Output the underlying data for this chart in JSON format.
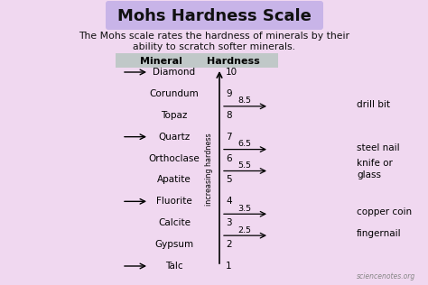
{
  "bg_color": "#f0d8f0",
  "title": "Mohs Hardness Scale",
  "title_bg": "#c8b4e8",
  "subtitle_line1": "The Mohs scale rates the hardness of minerals by their",
  "subtitle_line2": "ability to scratch softer minerals.",
  "col_mineral": "Mineral",
  "col_hardness": "Hardness",
  "minerals": [
    "Diamond",
    "Corundum",
    "Topaz",
    "Quartz",
    "Orthoclase",
    "Apatite",
    "Fluorite",
    "Calcite",
    "Gypsum",
    "Talc"
  ],
  "hardness_nums": [
    10,
    9,
    8,
    7,
    6,
    5,
    4,
    3,
    2,
    1
  ],
  "arrows_left_minerals": [
    "Diamond",
    "Quartz",
    "Fluorite",
    "Talc"
  ],
  "tool_hardness": [
    8.5,
    6.5,
    5.5,
    3.5,
    2.5
  ],
  "tool_labels": [
    "drill bit",
    "steel nail",
    "knife or\nglass",
    "copper coin",
    "fingernail"
  ],
  "axis_label": "increasing hardness",
  "watermark": "sciencenotes.org",
  "header_bg": "#c0c8c8",
  "title_fontsize": 13,
  "subtitle_fontsize": 7.8,
  "mineral_fontsize": 7.5,
  "tool_fontsize": 7.5,
  "header_fontsize": 8.0
}
